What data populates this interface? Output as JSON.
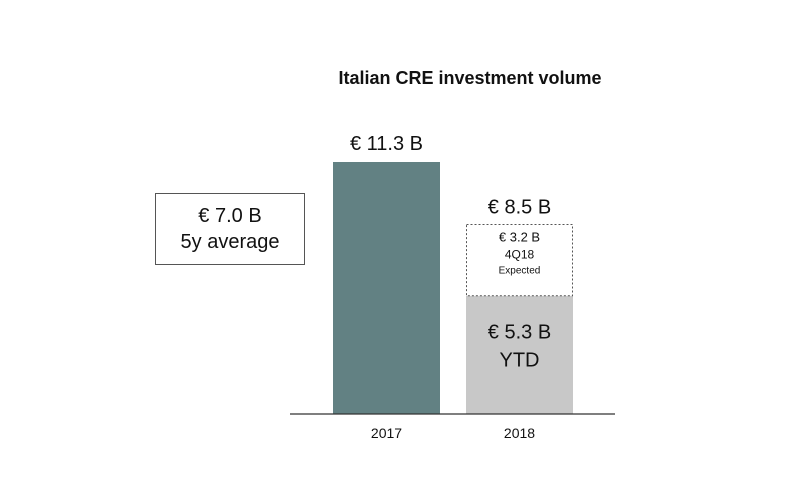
{
  "chart_data": {
    "type": "bar",
    "title": "Italian CRE investment volume",
    "categories": [
      "2017",
      "2018"
    ],
    "stacked": true,
    "series": [
      {
        "values": [
          11.3,
          5.3
        ],
        "colors": [
          "#628183",
          "#c8c8c8"
        ]
      },
      {
        "values": [
          0,
          3.2
        ],
        "colors": [
          "#ffffff",
          "#ffffff"
        ],
        "style": "dashed-outline"
      }
    ],
    "totals": [
      11.3,
      8.5
    ],
    "ylim": [
      0,
      11.3
    ],
    "grid": false,
    "labels": {
      "bar_2017_total": "€ 11.3 B",
      "bar_2018_total": "€ 8.5 B",
      "ytd_value": "€ 5.3 B",
      "ytd_text": "YTD",
      "expected_value": "€ 3.2 B",
      "expected_quarter": "4Q18",
      "expected_text": "Expected"
    },
    "average_box": {
      "value": "€ 7.0 B",
      "text": "5y average"
    }
  }
}
